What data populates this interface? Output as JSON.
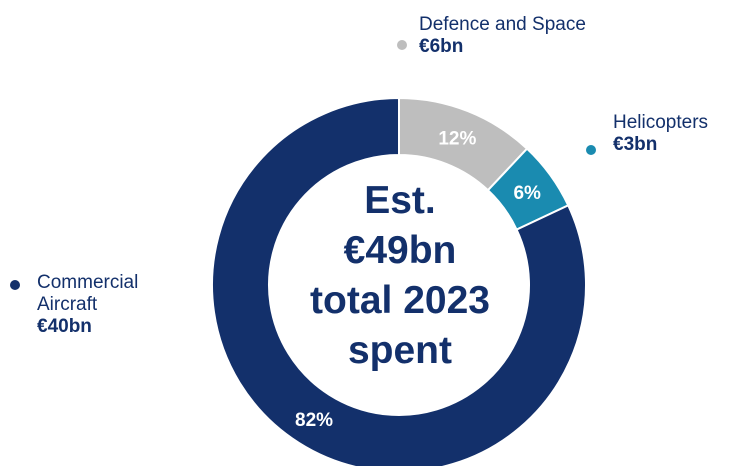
{
  "chart_data": {
    "type": "pie",
    "center_label": [
      "Est.",
      "€49bn",
      "total 2023",
      "spent"
    ],
    "slices": [
      {
        "name": "Defence and Space",
        "value_label": "€6bn",
        "percent": 12,
        "percent_label": "12%",
        "color": "#bebebe"
      },
      {
        "name": "Helicopters",
        "value_label": "€3bn",
        "percent": 6,
        "percent_label": "6%",
        "color": "#1a8bb0"
      },
      {
        "name": "Commercial Aircraft",
        "value_label": "€40bn",
        "percent": 82,
        "percent_label": "82%",
        "color": "#13306b"
      }
    ]
  },
  "legend": {
    "defence": {
      "name": "Defence and Space",
      "value": "€6bn"
    },
    "helicopters": {
      "name": "Helicopters",
      "value": "€3bn"
    },
    "commercial": {
      "name_line1": "Commercial",
      "name_line2": "Aircraft",
      "value": "€40bn"
    }
  },
  "colors": {
    "navy": "#13306b",
    "teal": "#1a8bb0",
    "grey": "#bebebe"
  }
}
